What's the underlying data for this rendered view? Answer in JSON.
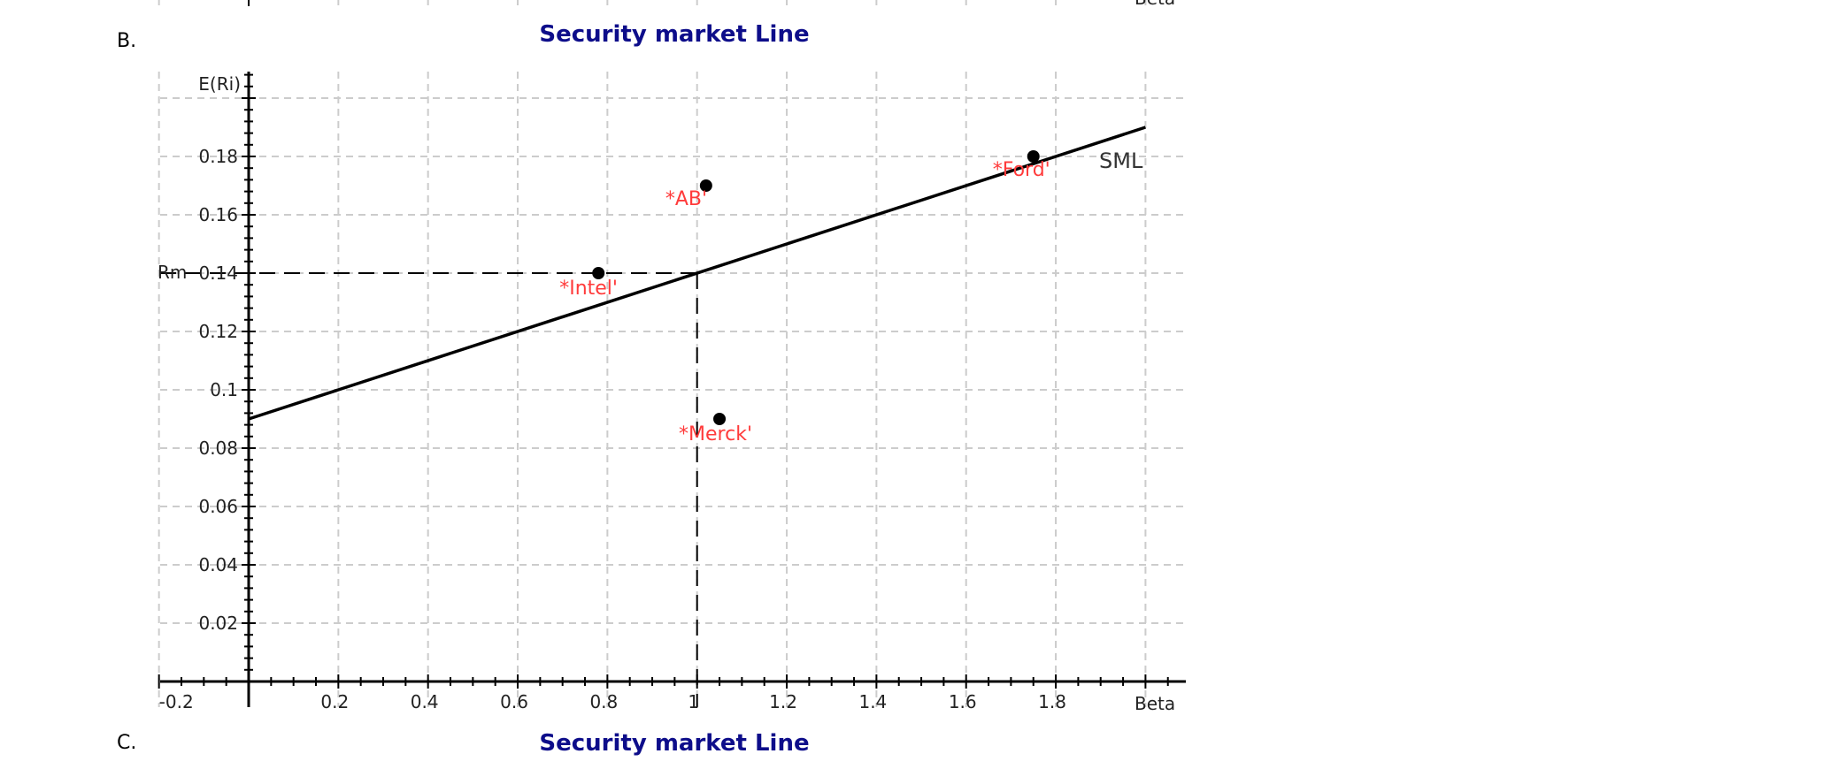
{
  "sections": [
    {
      "label": "B.",
      "title": "Security market Line"
    },
    {
      "label": "C.",
      "title": "Security market Line"
    }
  ],
  "top_fragment": {
    "xlabel": "Beta"
  },
  "chart_data": {
    "type": "scatter",
    "title": "Security market Line",
    "xlabel": "Beta",
    "ylabel": "E(Ri)",
    "xlim": [
      -0.2,
      2.1
    ],
    "ylim": [
      0,
      0.2
    ],
    "x_ticks": [
      "-0.2",
      "0.2",
      "0.4",
      "0.6",
      "0.8",
      "1",
      "1.2",
      "1.4",
      "1.6",
      "1.8"
    ],
    "y_ticks": [
      "0.02",
      "0.04",
      "0.06",
      "0.08",
      "0.1",
      "0.12",
      "0.14",
      "0.16",
      "0.18"
    ],
    "grid": true,
    "series": [
      {
        "name": "SML",
        "type": "line",
        "x": [
          0,
          2.0
        ],
        "y": [
          0.09,
          0.19
        ],
        "color": "#000000"
      }
    ],
    "points": [
      {
        "name": "Intel",
        "label": "*Intel'",
        "x": 0.78,
        "y": 0.14
      },
      {
        "name": "AB",
        "label": "*AB'",
        "x": 1.02,
        "y": 0.17
      },
      {
        "name": "Ford",
        "label": "*Ford'",
        "x": 1.75,
        "y": 0.18
      },
      {
        "name": "Merck",
        "label": "*Merck'",
        "x": 1.05,
        "y": 0.09
      }
    ],
    "annotations": [
      {
        "text": "Rm",
        "note": "market return reference at 0.14, dashed horizontal to beta=1"
      },
      {
        "text": "SML",
        "note": "line label near right end"
      }
    ],
    "rm_value": 0.14,
    "market_beta": 1.0,
    "rm_label": "Rm",
    "sml_label": "SML",
    "colors": {
      "title": "#0d0d8a",
      "point_label": "#ff3b3b",
      "grid": "#cccccc",
      "axis": "#000000"
    }
  }
}
